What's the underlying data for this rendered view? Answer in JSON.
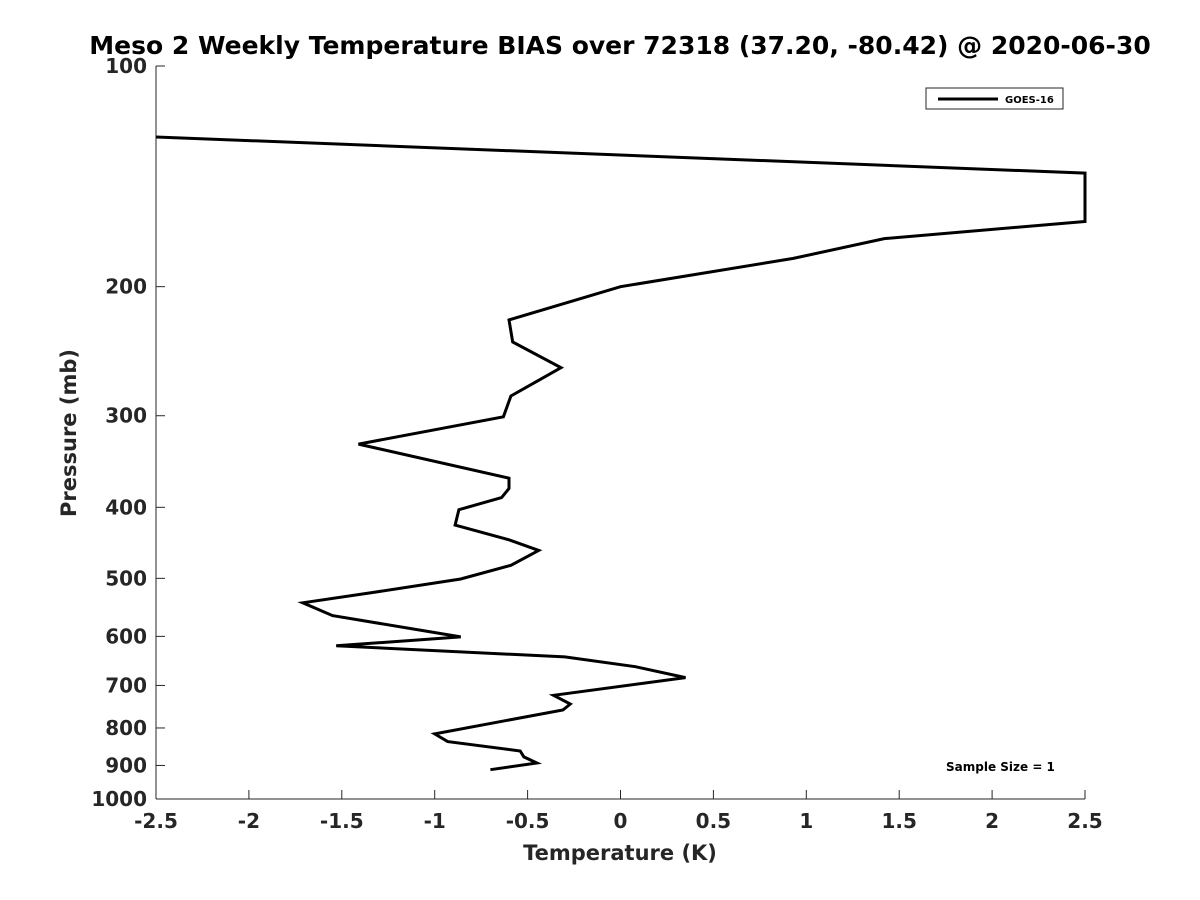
{
  "chart_data": {
    "type": "line",
    "title": "Meso 2 Weekly Temperature BIAS over 72318 (37.20, -80.42) @ 2020-06-30",
    "xlabel": "Temperature (K)",
    "ylabel": "Pressure (mb)",
    "xlim": [
      -2.5,
      2.5
    ],
    "ylim": [
      1000,
      100
    ],
    "y_scale": "log",
    "y_reversed": true,
    "x_ticks": [
      -2.5,
      -2,
      -1.5,
      -1,
      -0.5,
      0,
      0.5,
      1,
      1.5,
      2,
      2.5
    ],
    "x_tick_labels": [
      "-2.5",
      "-2",
      "-1.5",
      "-1",
      "-0.5",
      "0",
      "0.5",
      "1",
      "1.5",
      "2",
      "2.5"
    ],
    "y_ticks": [
      100,
      200,
      300,
      400,
      500,
      600,
      700,
      800,
      900,
      1000
    ],
    "y_tick_labels": [
      "100",
      "200",
      "300",
      "400",
      "500",
      "600",
      "700",
      "800",
      "900",
      "1000"
    ],
    "grid": false,
    "legend_position": "top-right",
    "annotation": "Sample Size = 1",
    "colors": {
      "line": "#000000",
      "axes": "#262626"
    },
    "series": [
      {
        "name": "GOES-16",
        "points": [
          [
            -2.5,
            125
          ],
          [
            2.5,
            140
          ],
          [
            2.5,
            163
          ],
          [
            1.42,
            172
          ],
          [
            0.93,
            183
          ],
          [
            0.0,
            200
          ],
          [
            -0.6,
            222
          ],
          [
            -0.58,
            238
          ],
          [
            -0.32,
            258
          ],
          [
            -0.59,
            282
          ],
          [
            -0.63,
            301
          ],
          [
            -1.41,
            328
          ],
          [
            -0.6,
            365
          ],
          [
            -0.6,
            377
          ],
          [
            -0.64,
            388
          ],
          [
            -0.87,
            403
          ],
          [
            -0.89,
            423
          ],
          [
            -0.6,
            443
          ],
          [
            -0.44,
            458
          ],
          [
            -0.59,
            480
          ],
          [
            -0.86,
            501
          ],
          [
            -1.32,
            522
          ],
          [
            -1.71,
            540
          ],
          [
            -1.55,
            562
          ],
          [
            -0.86,
            601
          ],
          [
            -1.53,
            618
          ],
          [
            -0.3,
            640
          ],
          [
            0.08,
            660
          ],
          [
            0.35,
            683
          ],
          [
            -0.36,
            722
          ],
          [
            -0.27,
            742
          ],
          [
            -0.31,
            756
          ],
          [
            -0.62,
            782
          ],
          [
            -1.0,
            815
          ],
          [
            -0.93,
            835
          ],
          [
            -0.54,
            860
          ],
          [
            -0.52,
            876
          ],
          [
            -0.45,
            893
          ],
          [
            -0.7,
            912
          ]
        ]
      }
    ]
  }
}
